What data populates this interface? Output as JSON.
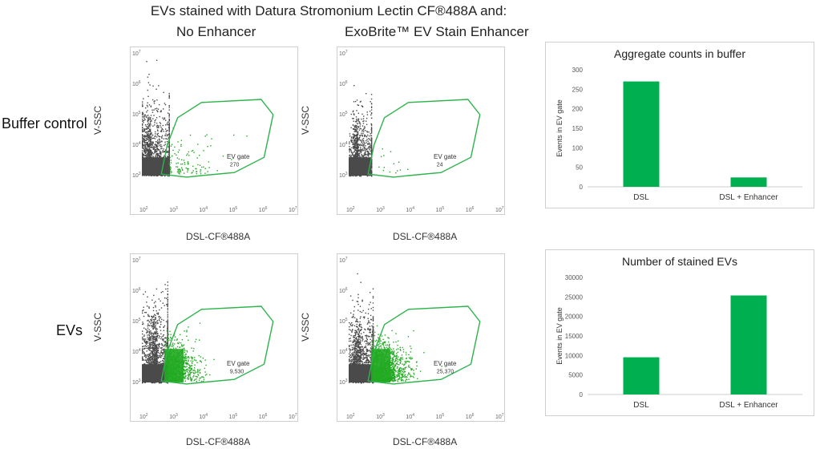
{
  "header": {
    "title": "EVs stained with Datura Stromonium Lectin CF®488A and:",
    "col1": "No Enhancer",
    "col2": "ExoBrite™ EV Stain Enhancer"
  },
  "rows": {
    "buffer": "Buffer control",
    "evs": "EVs"
  },
  "scatter_axes": {
    "xlabel": "DSL-CF®488A",
    "ylabel": "V-SSC",
    "xticks": [
      "10^2",
      "10^3",
      "10^4",
      "10^5",
      "10^6",
      "10^7"
    ],
    "yticks": [
      "10^3",
      "10^4",
      "10^5",
      "10^6",
      "10^7"
    ]
  },
  "gates": [
    {
      "label": "EV gate",
      "count": "270"
    },
    {
      "label": "EV gate",
      "count": "24"
    },
    {
      "label": "EV gate",
      "count": "9,530"
    },
    {
      "label": "EV gate",
      "count": "25,370"
    }
  ],
  "colors": {
    "gate": "#2db34a",
    "bar": "#00b050",
    "dots": "#4a4a4a",
    "green_dots": "#22aa22"
  },
  "chart_data": [
    {
      "type": "bar",
      "title": "Aggregate counts in buffer",
      "categories": [
        "DSL",
        "DSL + Enhancer"
      ],
      "values": [
        270,
        24
      ],
      "xlabel": "",
      "ylabel": "Events in EV gate",
      "ylim": [
        0,
        300
      ],
      "yticks": [
        0,
        50,
        100,
        150,
        200,
        250,
        300
      ],
      "grid": false
    },
    {
      "type": "bar",
      "title": "Number of stained EVs",
      "categories": [
        "DSL",
        "DSL + Enhancer"
      ],
      "values": [
        9530,
        25370
      ],
      "xlabel": "",
      "ylabel": "Events in EV gate",
      "ylim": [
        0,
        30000
      ],
      "yticks": [
        0,
        5000,
        10000,
        15000,
        20000,
        25000,
        30000
      ],
      "grid": false
    },
    {
      "type": "scatter",
      "xlabel": "DSL-CF®488A",
      "ylabel": "V-SSC",
      "xlim": [
        100,
        10000000
      ],
      "ylim": [
        1000,
        10000000
      ],
      "xscale": "log",
      "yscale": "log",
      "gate": {
        "label": "EV gate",
        "count": 270
      }
    },
    {
      "type": "scatter",
      "xlabel": "DSL-CF®488A",
      "ylabel": "V-SSC",
      "xlim": [
        100,
        10000000
      ],
      "ylim": [
        1000,
        10000000
      ],
      "xscale": "log",
      "yscale": "log",
      "gate": {
        "label": "EV gate",
        "count": 24
      }
    },
    {
      "type": "scatter",
      "xlabel": "DSL-CF®488A",
      "ylabel": "V-SSC",
      "xlim": [
        100,
        10000000
      ],
      "ylim": [
        1000,
        10000000
      ],
      "xscale": "log",
      "yscale": "log",
      "gate": {
        "label": "EV gate",
        "count": 9530
      }
    },
    {
      "type": "scatter",
      "xlabel": "DSL-CF®488A",
      "ylabel": "V-SSC",
      "xlim": [
        100,
        10000000
      ],
      "ylim": [
        1000,
        10000000
      ],
      "xscale": "log",
      "yscale": "log",
      "gate": {
        "label": "EV gate",
        "count": 25370
      }
    }
  ]
}
